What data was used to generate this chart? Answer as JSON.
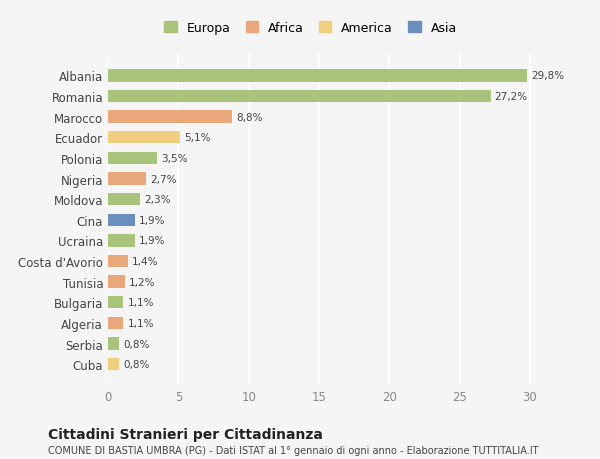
{
  "countries": [
    "Albania",
    "Romania",
    "Marocco",
    "Ecuador",
    "Polonia",
    "Nigeria",
    "Moldova",
    "Cina",
    "Ucraina",
    "Costa d'Avorio",
    "Tunisia",
    "Bulgaria",
    "Algeria",
    "Serbia",
    "Cuba"
  ],
  "values": [
    29.8,
    27.2,
    8.8,
    5.1,
    3.5,
    2.7,
    2.3,
    1.9,
    1.9,
    1.4,
    1.2,
    1.1,
    1.1,
    0.8,
    0.8
  ],
  "labels": [
    "29,8%",
    "27,2%",
    "8,8%",
    "5,1%",
    "3,5%",
    "2,7%",
    "2,3%",
    "1,9%",
    "1,9%",
    "1,4%",
    "1,2%",
    "1,1%",
    "1,1%",
    "0,8%",
    "0,8%"
  ],
  "continents": [
    "Europa",
    "Europa",
    "Africa",
    "America",
    "Europa",
    "Africa",
    "Europa",
    "Asia",
    "Europa",
    "Africa",
    "Africa",
    "Europa",
    "Africa",
    "Europa",
    "America"
  ],
  "colors": {
    "Europa": "#a8c47a",
    "Africa": "#e8a87c",
    "America": "#f0d080",
    "Asia": "#6a8fbf"
  },
  "legend_order": [
    "Europa",
    "Africa",
    "America",
    "Asia"
  ],
  "title": "Cittadini Stranieri per Cittadinanza",
  "subtitle": "COMUNE DI BASTIA UMBRA (PG) - Dati ISTAT al 1° gennaio di ogni anno - Elaborazione TUTTITALIA.IT",
  "xlim": [
    0,
    32
  ],
  "xticks": [
    0,
    5,
    10,
    15,
    20,
    25,
    30
  ],
  "background_color": "#f5f5f5",
  "grid_color": "#ffffff",
  "bar_height": 0.6
}
